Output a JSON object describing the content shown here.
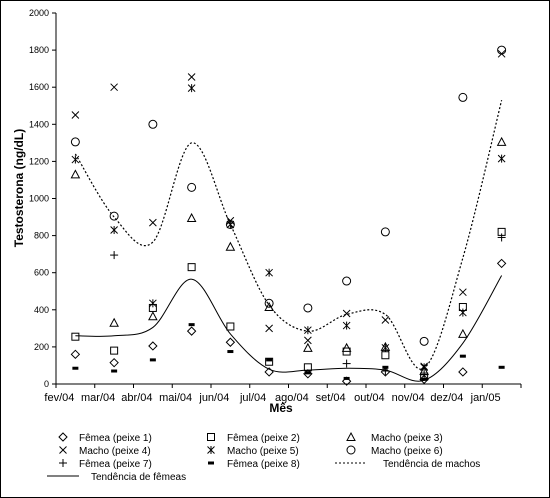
{
  "chart_data": {
    "type": "scatter",
    "title": "",
    "xlabel": "Mês",
    "ylabel": "Testosterona (ng/dL)",
    "ylim": [
      0,
      2000
    ],
    "yticks": [
      0,
      200,
      400,
      600,
      800,
      1000,
      1200,
      1400,
      1600,
      1800,
      2000
    ],
    "grid": false,
    "legend_position": "bottom",
    "categories": [
      "fev/04",
      "mar/04",
      "abr/04",
      "mai/04",
      "jun/04",
      "jul/04",
      "ago/04",
      "set/04",
      "out/04",
      "nov/04",
      "dez/04",
      "jan/05"
    ],
    "series": [
      {
        "name": "Fêmea (peixe 1)",
        "marker": "diamond",
        "values": [
          160,
          115,
          205,
          285,
          225,
          65,
          55,
          15,
          65,
          25,
          65,
          650
        ]
      },
      {
        "name": "Fêmea (peixe 2)",
        "marker": "square",
        "values": [
          255,
          180,
          410,
          630,
          310,
          120,
          90,
          175,
          155,
          40,
          415,
          820
        ]
      },
      {
        "name": "Macho (peixe 3)",
        "marker": "triangle",
        "values": [
          1130,
          330,
          365,
          895,
          740,
          415,
          195,
          195,
          200,
          70,
          270,
          1305
        ]
      },
      {
        "name": "Macho (peixe 4)",
        "marker": "x",
        "values": [
          1450,
          1600,
          870,
          1655,
          880,
          300,
          235,
          380,
          345,
          95,
          495,
          1780
        ]
      },
      {
        "name": "Macho (peixe 5)",
        "marker": "star",
        "values": [
          1210,
          830,
          435,
          1595,
          860,
          600,
          290,
          315,
          195,
          90,
          385,
          1215
        ]
      },
      {
        "name": "Macho (peixe 6)",
        "marker": "circle",
        "values": [
          1305,
          905,
          1400,
          1060,
          860,
          435,
          410,
          555,
          820,
          230,
          1545,
          1800
        ]
      },
      {
        "name": "Fêmea (peixe 7)",
        "marker": "plus",
        "values": [
          null,
          695,
          null,
          null,
          null,
          null,
          null,
          110,
          70,
          50,
          null,
          790
        ]
      },
      {
        "name": "Fêmea (peixe 8)",
        "marker": "dash",
        "values": [
          85,
          70,
          130,
          320,
          175,
          130,
          60,
          30,
          90,
          25,
          150,
          90
        ]
      }
    ],
    "trends": [
      {
        "name": "Tendência de machos",
        "style": "dotted",
        "values": [
          1240,
          900,
          765,
          1300,
          860,
          425,
          285,
          375,
          375,
          85,
          680,
          1530
        ]
      },
      {
        "name": "Tendência de fêmeas",
        "style": "solid",
        "values": [
          260,
          260,
          305,
          565,
          270,
          80,
          75,
          85,
          75,
          20,
          220,
          585
        ]
      }
    ]
  }
}
